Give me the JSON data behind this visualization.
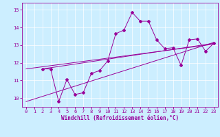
{
  "xlabel": "Windchill (Refroidissement éolien,°C)",
  "background_color": "#cceeff",
  "line_color": "#990099",
  "grid_color": "#ffffff",
  "xlim": [
    -0.5,
    23.5
  ],
  "ylim": [
    9.5,
    15.4
  ],
  "yticks": [
    10,
    11,
    12,
    13,
    14,
    15
  ],
  "xticks": [
    0,
    1,
    2,
    3,
    4,
    5,
    6,
    7,
    8,
    9,
    10,
    11,
    12,
    13,
    14,
    15,
    16,
    17,
    18,
    19,
    20,
    21,
    22,
    23
  ],
  "zigzag_x": [
    2,
    3,
    4,
    5,
    6,
    7,
    8,
    9,
    10,
    11,
    12,
    13,
    14,
    15,
    16,
    17,
    18,
    19,
    20,
    21,
    22,
    23
  ],
  "zigzag_y": [
    11.65,
    11.65,
    9.8,
    11.05,
    10.2,
    10.3,
    11.4,
    11.55,
    12.1,
    13.65,
    13.85,
    14.85,
    14.35,
    14.35,
    13.3,
    12.8,
    12.85,
    11.85,
    13.3,
    13.35,
    12.65,
    13.1
  ],
  "line1_x": [
    0,
    23
  ],
  "line1_y": [
    9.8,
    13.15
  ],
  "line2_x": [
    0,
    23
  ],
  "line2_y": [
    11.65,
    13.05
  ],
  "line3_x": [
    2,
    23
  ],
  "line3_y": [
    11.65,
    13.1
  ]
}
